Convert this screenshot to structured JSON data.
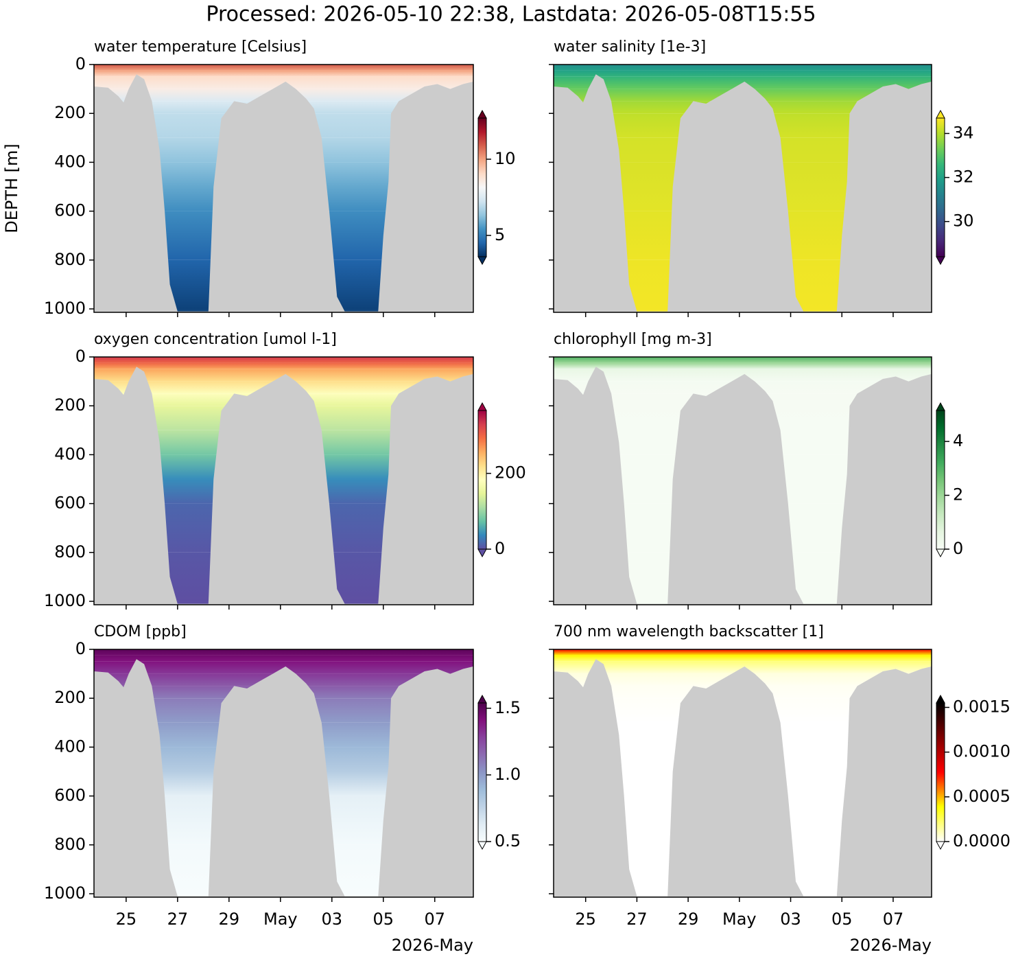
{
  "title": "Processed: 2026-05-10 22:38, Lastdata: 2026-05-08T15:55",
  "section": {
    "x": [
      23.75,
      24.3,
      24.7,
      24.9,
      25.1,
      25.4,
      25.7,
      26.0,
      26.3,
      26.5,
      26.7,
      27.0,
      27.5,
      28.0,
      28.2,
      28.4,
      28.7,
      29.2,
      29.7,
      30.2,
      30.7,
      31.2,
      31.6,
      32.0,
      32.3,
      32.6,
      32.9,
      33.2,
      33.5,
      34.0,
      34.5,
      34.8,
      35.0,
      35.2,
      35.3,
      35.6,
      36.1,
      36.6,
      37.1,
      37.6,
      38.1,
      38.5
    ],
    "max_depth": [
      90,
      95,
      130,
      155,
      100,
      40,
      60,
      150,
      350,
      600,
      900,
      1010,
      1010,
      1010,
      1010,
      500,
      220,
      150,
      160,
      130,
      100,
      70,
      100,
      140,
      180,
      300,
      600,
      950,
      1010,
      1010,
      1010,
      1010,
      700,
      480,
      200,
      150,
      120,
      90,
      80,
      100,
      80,
      70
    ],
    "background": "#cccccc"
  },
  "chart_data": [
    {
      "type": "section",
      "title": "water temperature [Celsius]",
      "ylabel": "DEPTH [m]",
      "colormap": [
        "#053061",
        "#2166ac",
        "#4393c3",
        "#92c5de",
        "#d1e5f0",
        "#f7f7f7",
        "#fddbc7",
        "#f4a582",
        "#d6604d",
        "#b2182b",
        "#67001f"
      ],
      "clim": [
        3.6,
        12.7
      ],
      "cticks": [
        5,
        10
      ],
      "depths": [
        0,
        25,
        50,
        100,
        150,
        200,
        300,
        400,
        500,
        600,
        800,
        1000
      ],
      "values": [
        11,
        10,
        9,
        8.5,
        7.5,
        7,
        6.8,
        6.3,
        5.8,
        5.3,
        4.5,
        3.9
      ],
      "ylim": [
        0,
        1014
      ],
      "invert_y": true,
      "yticks": [
        0,
        200,
        400,
        600,
        800,
        1000
      ],
      "ytick_labels": true,
      "xlim": [
        23.75,
        38.5
      ],
      "xticks": [
        25,
        27,
        29,
        {
          "value": 31,
          "label": "May"
        },
        {
          "value": 33,
          "label": "03"
        },
        {
          "value": 35,
          "label": "05"
        },
        {
          "value": 37,
          "label": "07"
        }
      ],
      "xtick_labels": false
    },
    {
      "type": "section",
      "title": "water salinity [1e-3]",
      "colormap": [
        "#440154",
        "#482878",
        "#3e4989",
        "#31688e",
        "#26828e",
        "#1f9e89",
        "#35b779",
        "#6ece58",
        "#b5de2b",
        "#fde725"
      ],
      "clim": [
        28.4,
        34.7
      ],
      "cticks": [
        30,
        32,
        34
      ],
      "depths": [
        0,
        25,
        50,
        100,
        150,
        200,
        300,
        400,
        500,
        600,
        800,
        1000
      ],
      "values": [
        31.5,
        32,
        32.5,
        33.2,
        33.8,
        34.1,
        34.3,
        34.35,
        34.4,
        34.45,
        34.55,
        34.6
      ],
      "ylim": [
        0,
        1014
      ],
      "invert_y": true,
      "yticks": [
        0,
        200,
        400,
        600,
        800,
        1000
      ],
      "ytick_labels": false,
      "xlim": [
        23.75,
        38.5
      ],
      "xticks": [
        25,
        27,
        29,
        {
          "value": 31,
          "label": "May"
        },
        {
          "value": 33,
          "label": "03"
        },
        {
          "value": 35,
          "label": "05"
        },
        {
          "value": 37,
          "label": "07"
        }
      ],
      "xtick_labels": false
    },
    {
      "type": "section",
      "title": "oxygen concentration [umol l-1]",
      "colormap": [
        "#5e4fa2",
        "#3288bd",
        "#66c2a5",
        "#abdda4",
        "#e6f598",
        "#ffffbf",
        "#fee08b",
        "#fdae61",
        "#f46d43",
        "#d53e4f",
        "#9e0142"
      ],
      "clim": [
        0,
        366
      ],
      "cticks": [
        0,
        200
      ],
      "depths": [
        0,
        25,
        50,
        100,
        150,
        200,
        300,
        400,
        500,
        600,
        800,
        1000
      ],
      "values": [
        330,
        300,
        260,
        220,
        180,
        150,
        120,
        80,
        40,
        15,
        5,
        0
      ],
      "ylim": [
        0,
        1014
      ],
      "invert_y": true,
      "yticks": [
        0,
        200,
        400,
        600,
        800,
        1000
      ],
      "ytick_labels": true,
      "xlim": [
        23.75,
        38.5
      ],
      "xticks": [
        25,
        27,
        29,
        {
          "value": 31,
          "label": "May"
        },
        {
          "value": 33,
          "label": "03"
        },
        {
          "value": 35,
          "label": "05"
        },
        {
          "value": 37,
          "label": "07"
        }
      ],
      "xtick_labels": false
    },
    {
      "type": "section",
      "title": "chlorophyll [mg m-3]",
      "colormap": [
        "#f7fcf5",
        "#e5f5e0",
        "#c7e9c0",
        "#a1d99b",
        "#74c476",
        "#41ab5d",
        "#238b45",
        "#006d2c",
        "#00441b"
      ],
      "clim": [
        0,
        5.15
      ],
      "cticks": [
        0,
        2,
        4
      ],
      "depths": [
        0,
        25,
        50,
        100,
        150,
        200,
        300,
        400,
        500,
        600,
        800,
        1000
      ],
      "values": [
        3,
        2,
        0.5,
        0.1,
        0.05,
        0.05,
        0.04,
        0.04,
        0.03,
        0.03,
        0.03,
        0.03
      ],
      "ylim": [
        0,
        1014
      ],
      "invert_y": true,
      "yticks": [
        0,
        200,
        400,
        600,
        800,
        1000
      ],
      "ytick_labels": false,
      "xlim": [
        23.75,
        38.5
      ],
      "xticks": [
        25,
        27,
        29,
        {
          "value": 31,
          "label": "May"
        },
        {
          "value": 33,
          "label": "03"
        },
        {
          "value": 35,
          "label": "05"
        },
        {
          "value": 37,
          "label": "07"
        }
      ],
      "xtick_labels": false
    },
    {
      "type": "section",
      "title": "CDOM [ppb]",
      "xlabel": "2026-May",
      "colormap": [
        "#f7fcfd",
        "#e0ecf4",
        "#bfd3e6",
        "#9ebcda",
        "#8c96c6",
        "#8c6bb1",
        "#88419d",
        "#810f7c",
        "#4d004b"
      ],
      "clim": [
        0.5,
        1.54
      ],
      "cticks": [
        0.5,
        {
          "value": 1,
          "label": "1.0"
        },
        1.5
      ],
      "depths": [
        0,
        25,
        50,
        100,
        150,
        200,
        300,
        400,
        500,
        600,
        800,
        1000
      ],
      "values": [
        1.5,
        1.45,
        1.4,
        1.3,
        1.2,
        1.1,
        1.0,
        0.9,
        0.8,
        0.6,
        0.52,
        0.5
      ],
      "ylim": [
        0,
        1014
      ],
      "invert_y": true,
      "yticks": [
        0,
        200,
        400,
        600,
        800,
        1000
      ],
      "ytick_labels": true,
      "xlim": [
        23.75,
        38.5
      ],
      "xticks": [
        25,
        27,
        29,
        {
          "value": 31,
          "label": "May"
        },
        {
          "value": 33,
          "label": "03"
        },
        {
          "value": 35,
          "label": "05"
        },
        {
          "value": 37,
          "label": "07"
        }
      ],
      "xtick_labels": true
    },
    {
      "type": "section",
      "title": "700 nm wavelength backscatter [1]",
      "xlabel": "2026-May",
      "colormap": [
        "#ffffff",
        "#ffff80",
        "#ffff00",
        "#ff8000",
        "#ff0000",
        "#bf0000",
        "#800000",
        "#400000",
        "#000000"
      ],
      "clim": [
        0,
        0.00155
      ],
      "cticks": [
        {
          "value": 0,
          "label": "0.0000"
        },
        {
          "value": 0.0005,
          "label": "0.0005"
        },
        {
          "value": 0.001,
          "label": "0.0010"
        },
        {
          "value": 0.0015,
          "label": "0.0015"
        }
      ],
      "depths": [
        0,
        25,
        50,
        100,
        150,
        200,
        300,
        400,
        500,
        600,
        800,
        1000
      ],
      "values": [
        0.0008,
        0.0004,
        0.0002,
        5e-05,
        2e-05,
        1e-05,
        0,
        0,
        0,
        0,
        0,
        0
      ],
      "ylim": [
        0,
        1014
      ],
      "invert_y": true,
      "yticks": [
        0,
        200,
        400,
        600,
        800,
        1000
      ],
      "ytick_labels": false,
      "xlim": [
        23.75,
        38.5
      ],
      "xticks": [
        25,
        27,
        29,
        {
          "value": 31,
          "label": "May"
        },
        {
          "value": 33,
          "label": "03"
        },
        {
          "value": 35,
          "label": "05"
        },
        {
          "value": 37,
          "label": "07"
        }
      ],
      "xtick_labels": true
    }
  ]
}
